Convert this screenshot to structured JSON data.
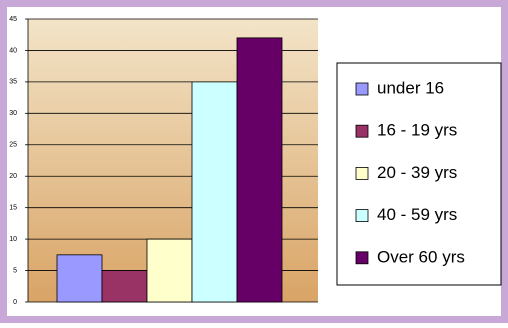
{
  "chart_data": {
    "type": "bar",
    "categories": [
      "under 16",
      "16 - 19 yrs",
      "20 - 39 yrs",
      "40 - 59 yrs",
      "Over 60 yrs"
    ],
    "values": [
      7.5,
      5,
      10,
      35,
      42
    ],
    "colors": [
      "#9999ff",
      "#993366",
      "#ffffcc",
      "#ccffff",
      "#660066"
    ],
    "ylim": [
      0,
      45
    ],
    "yticks": [
      0,
      5,
      10,
      15,
      20,
      25,
      30,
      35,
      40,
      45
    ],
    "grid": true,
    "legend": "right"
  }
}
